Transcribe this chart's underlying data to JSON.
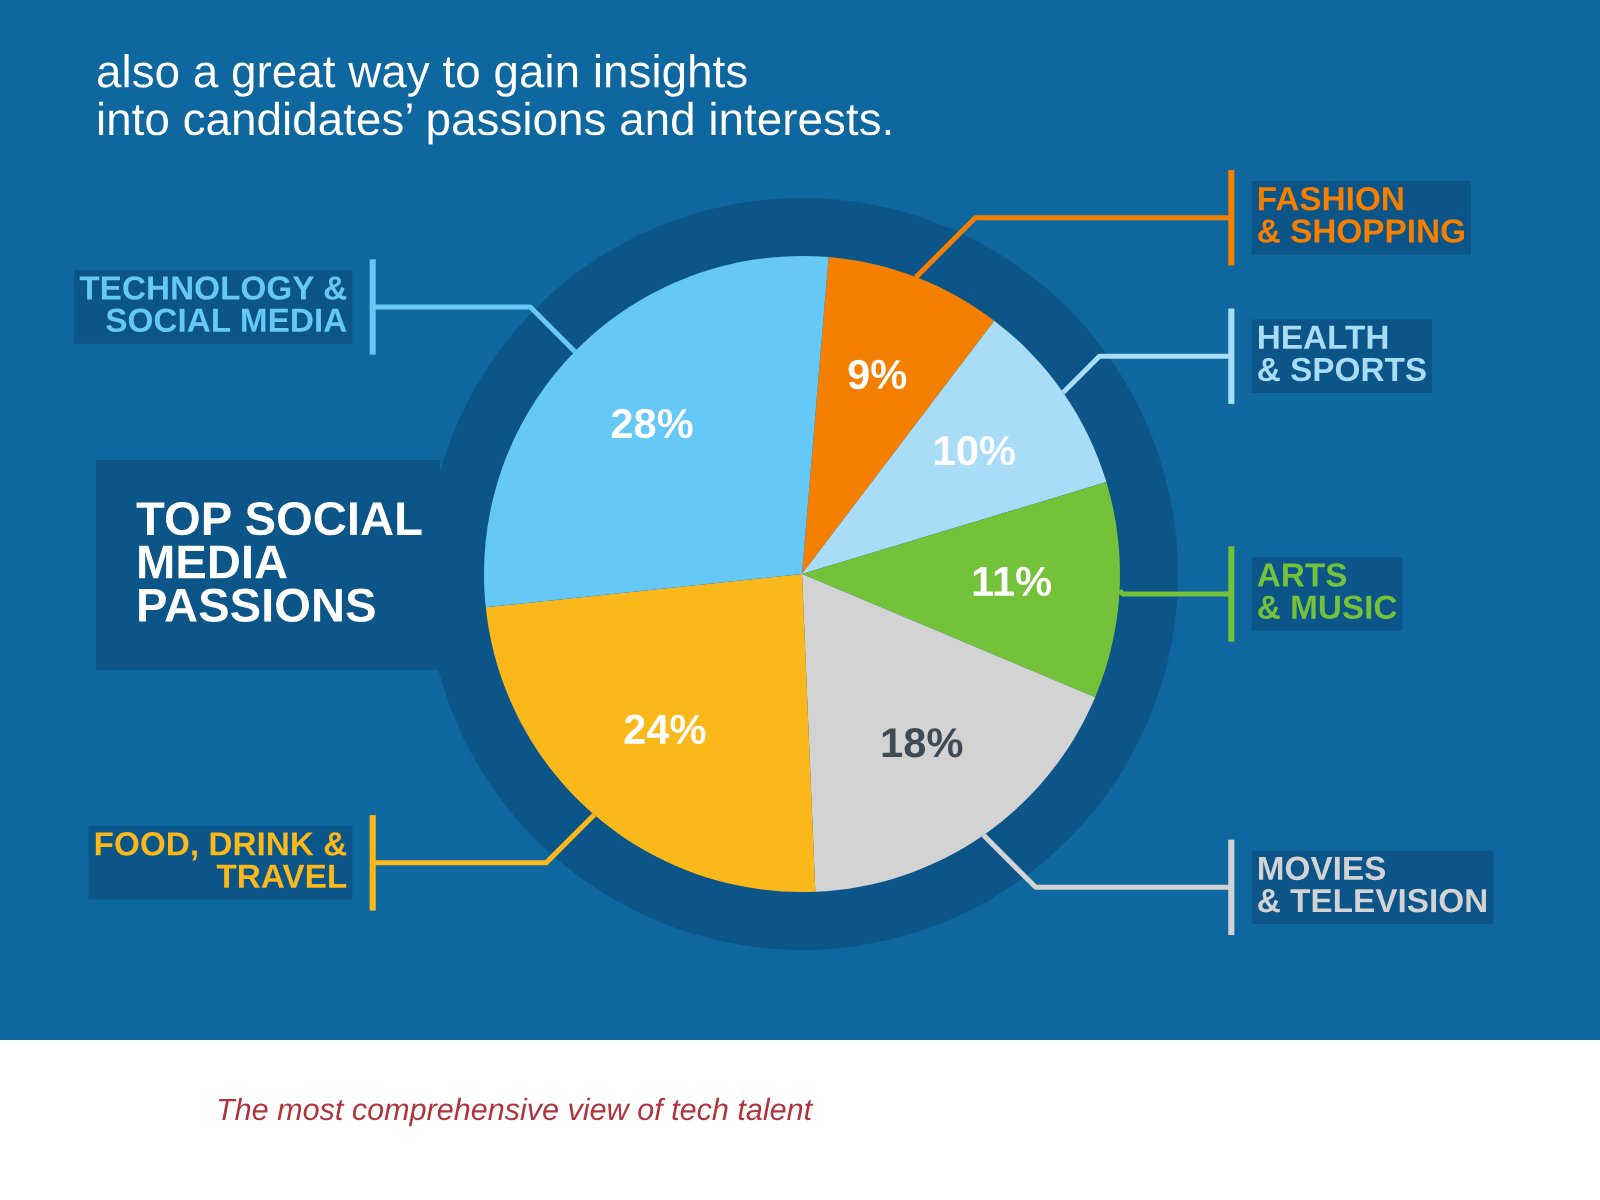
{
  "chart_data": {
    "type": "pie",
    "title": "also a great way to gain insights\ninto candidates’ passions and interests.",
    "subtitle": "TOP SOCIAL\nMEDIA\nPASSIONS",
    "categories": [
      "FASHION\n& SHOPPING",
      "HEALTH\n& SPORTS",
      "ARTS\n& MUSIC",
      "MOVIES\n& TELEVISION",
      "FOOD, DRINK &\nTRAVEL",
      "TECHNOLOGY &\nSOCIAL MEDIA"
    ],
    "values": [
      9,
      10,
      11,
      18,
      24,
      28
    ],
    "colors": [
      "#f57f00",
      "#a9ddf7",
      "#74c13a",
      "#d3d3d3",
      "#fbb81a",
      "#66c8f7"
    ],
    "value_labels": [
      "9%",
      "10%",
      "11%",
      "18%",
      "24%",
      "28%"
    ],
    "annotations": [
      "The most comprehensive view of tech talent"
    ]
  }
}
